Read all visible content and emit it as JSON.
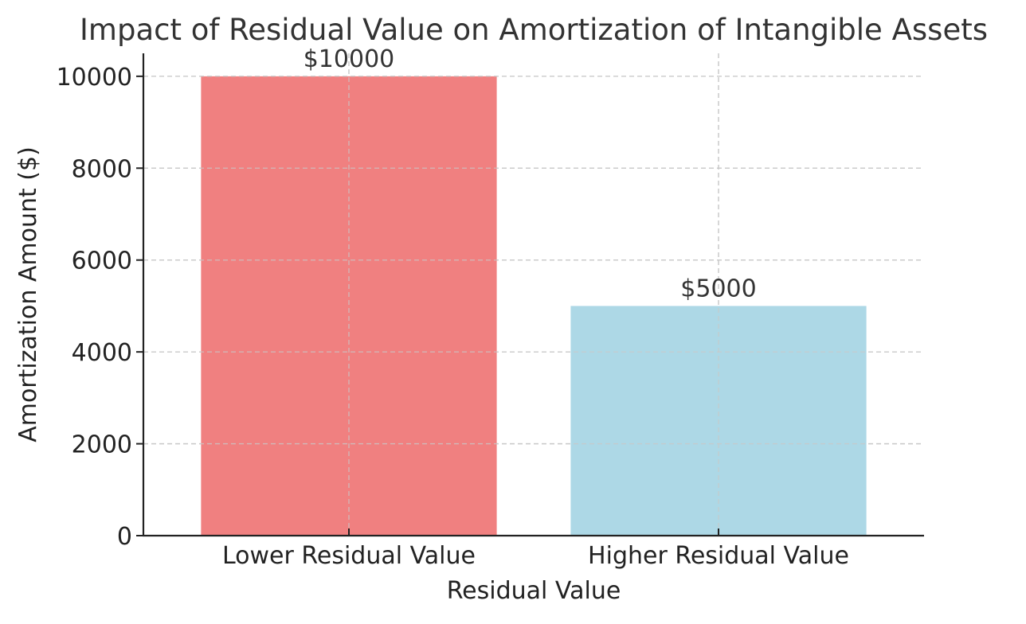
{
  "chart_data": {
    "type": "bar",
    "title": "Impact of Residual Value on Amortization of Intangible Assets",
    "xlabel": "Residual Value",
    "ylabel": "Amortization Amount ($)",
    "categories": [
      "Lower Residual Value",
      "Higher Residual Value"
    ],
    "values": [
      10000,
      5000
    ],
    "data_labels": [
      "$10000",
      "$5000"
    ],
    "colors": [
      "#f08080",
      "#add8e6"
    ],
    "ylim": [
      0,
      10500
    ],
    "yticks": [
      0,
      2000,
      4000,
      6000,
      8000,
      10000
    ],
    "ytick_labels": [
      "0",
      "2000",
      "4000",
      "6000",
      "8000",
      "10000"
    ],
    "grid": true
  }
}
